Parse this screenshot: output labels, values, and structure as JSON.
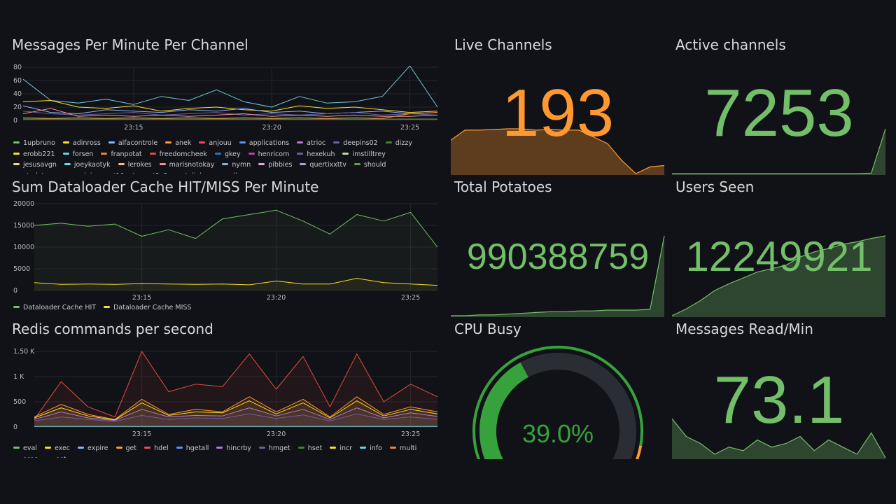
{
  "colors": {
    "green": "#73bf69",
    "yellow": "#fade2a",
    "orange": "#ff9830",
    "red": "#f2495c",
    "blue": "#5794f2",
    "purple": "#b877d9",
    "teal": "#6fc9d6",
    "gauge_green": "#37a23b"
  },
  "panels": {
    "messages_per_minute": {
      "title": "Messages Per Minute Per Channel",
      "y_ticks": [
        "80",
        "60",
        "40",
        "20",
        "0"
      ],
      "x_ticks": [
        "23:15",
        "23:20",
        "23:25"
      ],
      "legend": [
        {
          "name": "1upbruno",
          "color": "#73bf69"
        },
        {
          "name": "adinross",
          "color": "#fade2a"
        },
        {
          "name": "alfacontrole",
          "color": "#8ab8ff"
        },
        {
          "name": "anek",
          "color": "#ff9830"
        },
        {
          "name": "anjouu",
          "color": "#f2495c"
        },
        {
          "name": "applications",
          "color": "#5794f2"
        },
        {
          "name": "atrioc",
          "color": "#b877d9"
        },
        {
          "name": "deepins02",
          "color": "#705da0"
        },
        {
          "name": "dizzy",
          "color": "#37872d"
        },
        {
          "name": "erobb221",
          "color": "#fade2a"
        },
        {
          "name": "forsen",
          "color": "#6ed0e0"
        },
        {
          "name": "franpotat",
          "color": "#ef843c"
        },
        {
          "name": "freedomcheek",
          "color": "#e24d42"
        },
        {
          "name": "gkey",
          "color": "#1f78c1"
        },
        {
          "name": "henricom",
          "color": "#ba43a9"
        },
        {
          "name": "hexekuh",
          "color": "#705da0"
        },
        {
          "name": "imstilltrey",
          "color": "#b7dbab"
        },
        {
          "name": "jesusavgn",
          "color": "#f4d598"
        },
        {
          "name": "joeykaotyk",
          "color": "#70dbed"
        },
        {
          "name": "lerokes",
          "color": "#f9ba8f"
        },
        {
          "name": "marisnotokay",
          "color": "#f29191"
        },
        {
          "name": "nymn",
          "color": "#82b5d8"
        },
        {
          "name": "pibbies",
          "color": "#e5a8e2"
        },
        {
          "name": "quertixxttv",
          "color": "#aea2e0"
        },
        {
          "name": "should",
          "color": "#629e51"
        },
        {
          "name": "studytme",
          "color": "#e5ac0e"
        },
        {
          "name": "supinic",
          "color": "#64b0c8"
        },
        {
          "name": "t10nat",
          "color": "#e0752d"
        },
        {
          "name": "t2x2",
          "color": "#bf1b00"
        },
        {
          "name": "telinha",
          "color": "#0a50a1"
        },
        {
          "name": "valkyrae",
          "color": "#962d82"
        },
        {
          "name": "xqc",
          "color": "#614d93"
        }
      ]
    },
    "cache_hit_miss": {
      "title": "Sum Dataloader Cache HIT/MISS Per Minute",
      "y_ticks": [
        "20000",
        "15000",
        "10000",
        "5000",
        "0"
      ],
      "x_ticks": [
        "23:15",
        "23:20",
        "23:25"
      ],
      "legend": [
        {
          "name": "Dataloader Cache HIT",
          "color": "#73bf69"
        },
        {
          "name": "Dataloader Cache MISS",
          "color": "#fade2a"
        }
      ]
    },
    "redis_commands": {
      "title": "Redis commands per second",
      "y_ticks": [
        "1.50 K",
        "1 K",
        "500",
        "0"
      ],
      "x_ticks": [
        "23:15",
        "23:20",
        "23:25"
      ],
      "legend": [
        {
          "name": "eval",
          "color": "#73bf69"
        },
        {
          "name": "exec",
          "color": "#fade2a"
        },
        {
          "name": "expire",
          "color": "#8ab8ff"
        },
        {
          "name": "get",
          "color": "#ff9830"
        },
        {
          "name": "hdel",
          "color": "#f2495c"
        },
        {
          "name": "hgetall",
          "color": "#5794f2"
        },
        {
          "name": "hincrby",
          "color": "#b877d9"
        },
        {
          "name": "hmget",
          "color": "#705da0"
        },
        {
          "name": "hset",
          "color": "#37872d"
        },
        {
          "name": "incr",
          "color": "#fade2a"
        },
        {
          "name": "info",
          "color": "#6ed0e0"
        },
        {
          "name": "multi",
          "color": "#ef843c"
        },
        {
          "name": "scan",
          "color": "#e24d42"
        },
        {
          "name": "set",
          "color": "#1f78c1"
        }
      ]
    },
    "live_channels": {
      "title": "Live Channels",
      "value": "193"
    },
    "active_channels": {
      "title": "Active channels",
      "value": "7253"
    },
    "total_potatoes": {
      "title": "Total Potatoes",
      "value": "990388759"
    },
    "users_seen": {
      "title": "Users Seen",
      "value": "12249921"
    },
    "cpu_busy": {
      "title": "CPU Busy",
      "value": "39.0%",
      "percent": 39.0
    },
    "messages_read": {
      "title": "Messages Read/Min",
      "value": "73.1"
    }
  },
  "chart_data": [
    {
      "type": "line",
      "title": "Messages Per Minute Per Channel",
      "x": [
        "23:11",
        "23:12",
        "23:13",
        "23:14",
        "23:15",
        "23:16",
        "23:17",
        "23:18",
        "23:19",
        "23:20",
        "23:21",
        "23:22",
        "23:23",
        "23:24",
        "23:25",
        "23:26"
      ],
      "ylim": [
        0,
        80
      ],
      "series": [
        {
          "name": "forsen",
          "values": [
            62,
            30,
            26,
            32,
            24,
            36,
            30,
            46,
            28,
            20,
            36,
            26,
            28,
            36,
            82,
            20
          ]
        },
        {
          "name": "adinross",
          "values": [
            28,
            30,
            20,
            18,
            22,
            14,
            18,
            20,
            16,
            14,
            22,
            18,
            20,
            16,
            12,
            14
          ]
        },
        {
          "name": "alfacontrole",
          "values": [
            22,
            12,
            10,
            16,
            14,
            12,
            16,
            14,
            18,
            12,
            14,
            10,
            12,
            14,
            10,
            12
          ]
        },
        {
          "name": "xqc",
          "values": [
            14,
            10,
            8,
            10,
            12,
            8,
            10,
            12,
            8,
            10,
            8,
            10,
            12,
            8,
            10,
            8
          ]
        },
        {
          "name": "deepins02",
          "values": [
            10,
            18,
            6,
            8,
            6,
            8,
            6,
            8,
            10,
            6,
            8,
            6,
            8,
            6,
            6,
            8
          ]
        },
        {
          "name": "anek",
          "values": [
            4,
            3,
            4,
            3,
            4,
            3,
            4,
            3,
            4,
            3,
            4,
            3,
            4,
            3,
            10,
            12
          ]
        },
        {
          "name": "1upbruno",
          "values": [
            2,
            2,
            2,
            2,
            2,
            2,
            2,
            2,
            2,
            2,
            2,
            2,
            2,
            2,
            2,
            2
          ]
        }
      ]
    },
    {
      "type": "line",
      "title": "Sum Dataloader Cache HIT/MISS Per Minute",
      "x": [
        "23:11",
        "23:12",
        "23:13",
        "23:14",
        "23:15",
        "23:16",
        "23:17",
        "23:18",
        "23:19",
        "23:20",
        "23:21",
        "23:22",
        "23:23",
        "23:24",
        "23:25",
        "23:26"
      ],
      "ylim": [
        0,
        20000
      ],
      "series": [
        {
          "name": "Dataloader Cache HIT",
          "values": [
            15000,
            15500,
            14800,
            15300,
            12500,
            14000,
            12000,
            16500,
            17500,
            18500,
            16000,
            13000,
            17500,
            16000,
            18000,
            10000
          ]
        },
        {
          "name": "Dataloader Cache MISS",
          "values": [
            1800,
            1400,
            1500,
            1400,
            1600,
            1500,
            1400,
            1500,
            1300,
            2200,
            1500,
            1500,
            2800,
            1800,
            1500,
            1200
          ]
        }
      ]
    },
    {
      "type": "line",
      "title": "Redis commands per second",
      "x": [
        "23:11",
        "23:12",
        "23:13",
        "23:14",
        "23:15",
        "23:16",
        "23:17",
        "23:18",
        "23:19",
        "23:20",
        "23:21",
        "23:22",
        "23:23",
        "23:24",
        "23:25",
        "23:26"
      ],
      "ylim": [
        0,
        1500
      ],
      "series": [
        {
          "name": "scan",
          "values": [
            150,
            900,
            400,
            200,
            1500,
            700,
            850,
            800,
            1450,
            750,
            1400,
            400,
            1450,
            500,
            850,
            600
          ]
        },
        {
          "name": "get",
          "values": [
            200,
            450,
            250,
            150,
            550,
            250,
            350,
            300,
            600,
            300,
            550,
            200,
            600,
            250,
            400,
            300
          ]
        },
        {
          "name": "exec",
          "values": [
            180,
            380,
            220,
            140,
            480,
            230,
            300,
            280,
            520,
            260,
            480,
            180,
            520,
            220,
            350,
            260
          ]
        },
        {
          "name": "hincrby",
          "values": [
            150,
            300,
            180,
            130,
            350,
            200,
            230,
            220,
            380,
            220,
            350,
            150,
            380,
            180,
            280,
            210
          ]
        },
        {
          "name": "hmget",
          "values": [
            120,
            200,
            150,
            110,
            230,
            150,
            180,
            170,
            260,
            170,
            240,
            120,
            260,
            150,
            200,
            150
          ]
        },
        {
          "name": "info",
          "values": [
            10,
            10,
            10,
            10,
            10,
            10,
            10,
            10,
            10,
            10,
            10,
            10,
            10,
            10,
            10,
            10
          ]
        }
      ]
    },
    {
      "type": "area",
      "title": "Live Channels",
      "values": [
        190,
        205,
        205,
        206,
        207,
        207,
        205,
        206,
        205,
        205,
        195,
        185,
        160,
        140,
        150,
        152
      ]
    },
    {
      "type": "area",
      "title": "Active channels",
      "values": [
        0,
        0,
        0,
        0,
        0,
        0,
        0,
        0,
        0,
        0,
        0,
        0,
        0,
        0,
        1,
        100
      ]
    },
    {
      "type": "area",
      "title": "Total Potatoes",
      "values": [
        0,
        0,
        1,
        1,
        2,
        3,
        4,
        5,
        5,
        6,
        6,
        7,
        7,
        7,
        8,
        100
      ]
    },
    {
      "type": "area",
      "title": "Users Seen",
      "values": [
        0,
        8,
        18,
        30,
        38,
        45,
        52,
        56,
        60,
        70,
        76,
        80,
        85,
        88,
        92,
        95
      ]
    },
    {
      "type": "area",
      "title": "Messages Read/Min",
      "values": [
        60,
        35,
        25,
        10,
        20,
        15,
        30,
        20,
        25,
        35,
        15,
        30,
        20,
        10,
        40,
        5
      ]
    }
  ]
}
